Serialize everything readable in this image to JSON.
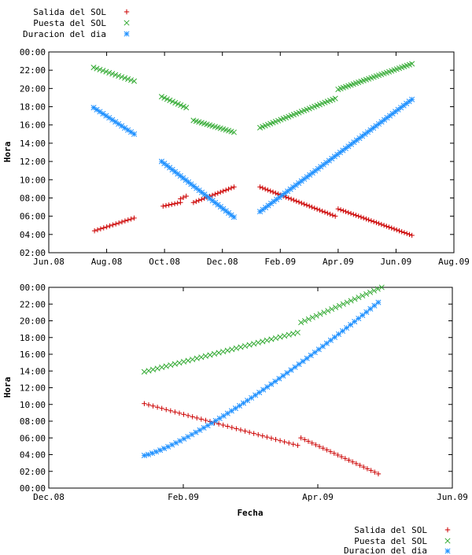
{
  "colors": {
    "sunrise": "#cc0000",
    "sunset": "#33aa33",
    "daylight": "#1e90ff"
  },
  "legend_top": {
    "items": [
      {
        "label": "Salida del SOL",
        "marker": "plus"
      },
      {
        "label": "Puesta del SOL",
        "marker": "cross"
      },
      {
        "label": "Duracion del dia",
        "marker": "star"
      }
    ]
  },
  "legend_bottom": {
    "items": [
      {
        "label": "Salida del SOL",
        "marker": "plus"
      },
      {
        "label": "Puesta del SOL",
        "marker": "cross"
      },
      {
        "label": "Duracion del dia",
        "marker": "star"
      }
    ]
  },
  "chart_data": [
    {
      "type": "scatter",
      "title": "",
      "xlabel": "",
      "ylabel": "Hora",
      "x_unit": "months since Jun 2008",
      "xlim": [
        0,
        14
      ],
      "ylim": [
        2,
        24
      ],
      "xticks": [
        {
          "x": 0,
          "label": "Jun.08"
        },
        {
          "x": 2,
          "label": "Aug.08"
        },
        {
          "x": 4,
          "label": "Oct.08"
        },
        {
          "x": 6,
          "label": "Dec.08"
        },
        {
          "x": 8,
          "label": "Feb.09"
        },
        {
          "x": 10,
          "label": "Apr.09"
        },
        {
          "x": 12,
          "label": "Jun.09"
        },
        {
          "x": 14,
          "label": "Aug.09"
        }
      ],
      "yticks": [
        {
          "y": 2,
          "label": "02:00"
        },
        {
          "y": 4,
          "label": "04:00"
        },
        {
          "y": 6,
          "label": "06:00"
        },
        {
          "y": 8,
          "label": "08:00"
        },
        {
          "y": 10,
          "label": "10:00"
        },
        {
          "y": 12,
          "label": "12:00"
        },
        {
          "y": 14,
          "label": "14:00"
        },
        {
          "y": 16,
          "label": "16:00"
        },
        {
          "y": 18,
          "label": "18:00"
        },
        {
          "y": 20,
          "label": "20:00"
        },
        {
          "y": 22,
          "label": "22:00"
        },
        {
          "y": 24,
          "label": "00:00"
        }
      ],
      "series": [
        {
          "name": "Salida del SOL",
          "marker": "plus",
          "segments": [
            {
              "x0": 1.58,
              "x1": 2.95,
              "y0": 4.4,
              "y1": 5.8,
              "n": 14
            },
            {
              "x0": 3.95,
              "x1": 4.55,
              "y0": 7.1,
              "y1": 7.5,
              "n": 7
            },
            {
              "x0": 4.55,
              "x1": 4.75,
              "y0": 7.9,
              "y1": 8.2,
              "n": 3
            },
            {
              "x0": 5.0,
              "x1": 6.4,
              "y0": 7.5,
              "y1": 9.2,
              "n": 16
            },
            {
              "x0": 7.3,
              "x1": 9.9,
              "y0": 9.2,
              "y1": 6.0,
              "n": 30
            },
            {
              "x0": 10.0,
              "x1": 12.55,
              "y0": 6.8,
              "y1": 3.9,
              "n": 30
            }
          ]
        },
        {
          "name": "Puesta del SOL",
          "marker": "cross",
          "segments": [
            {
              "x0": 1.55,
              "x1": 2.95,
              "y0": 22.3,
              "y1": 20.8,
              "n": 14
            },
            {
              "x0": 3.9,
              "x1": 4.75,
              "y0": 19.1,
              "y1": 17.9,
              "n": 10
            },
            {
              "x0": 5.0,
              "x1": 6.4,
              "y0": 16.5,
              "y1": 15.2,
              "n": 16
            },
            {
              "x0": 7.3,
              "x1": 9.9,
              "y0": 15.7,
              "y1": 18.9,
              "n": 30
            },
            {
              "x0": 10.0,
              "x1": 12.55,
              "y0": 19.9,
              "y1": 22.7,
              "n": 30
            }
          ]
        },
        {
          "name": "Duracion del dia",
          "marker": "star",
          "segments": [
            {
              "x0": 1.55,
              "x1": 2.95,
              "y0": 17.9,
              "y1": 15.0,
              "n": 14
            },
            {
              "x0": 3.9,
              "x1": 6.4,
              "y0": 12.0,
              "y1": 5.9,
              "n": 28
            },
            {
              "x0": 7.3,
              "x1": 12.55,
              "y0": 6.5,
              "y1": 18.8,
              "n": 56
            }
          ]
        }
      ]
    },
    {
      "type": "scatter",
      "title": "",
      "xlabel": "Fecha",
      "ylabel": "Hora",
      "x_unit": "months since Dec 2008",
      "xlim": [
        0,
        6
      ],
      "ylim": [
        0,
        24
      ],
      "xticks": [
        {
          "x": 0,
          "label": "Dec.08"
        },
        {
          "x": 2,
          "label": "Feb.09"
        },
        {
          "x": 4,
          "label": "Apr.09"
        },
        {
          "x": 6,
          "label": "Jun.09"
        }
      ],
      "yticks": [
        {
          "y": 0,
          "label": "00:00"
        },
        {
          "y": 2,
          "label": "02:00"
        },
        {
          "y": 4,
          "label": "04:00"
        },
        {
          "y": 6,
          "label": "06:00"
        },
        {
          "y": 8,
          "label": "08:00"
        },
        {
          "y": 10,
          "label": "10:00"
        },
        {
          "y": 12,
          "label": "12:00"
        },
        {
          "y": 14,
          "label": "14:00"
        },
        {
          "y": 16,
          "label": "16:00"
        },
        {
          "y": 18,
          "label": "18:00"
        },
        {
          "y": 20,
          "label": "20:00"
        },
        {
          "y": 22,
          "label": "22:00"
        },
        {
          "y": 24,
          "label": "00:00"
        }
      ],
      "series": [
        {
          "name": "Salida del SOL",
          "marker": "plus",
          "segments": [
            {
              "x0": 1.42,
              "x1": 3.7,
              "y0": 10.1,
              "y1": 5.1,
              "n": 36
            },
            {
              "x0": 3.75,
              "x1": 4.9,
              "y0": 6.0,
              "y1": 1.7,
              "n": 22
            }
          ]
        },
        {
          "name": "Puesta del SOL",
          "marker": "cross",
          "segments": [
            {
              "x0": 1.42,
              "x1": 3.7,
              "y0": 13.9,
              "y1": 18.6,
              "n": 36
            },
            {
              "x0": 3.75,
              "x1": 4.95,
              "y0": 19.8,
              "y1": 24.0,
              "n": 22
            }
          ]
        },
        {
          "name": "Duracion del dia",
          "marker": "star",
          "segments": [
            {
              "x0": 1.42,
              "x1": 4.9,
              "y0": 3.9,
              "y1": 22.2,
              "n": 60,
              "curve": 1.25
            }
          ]
        }
      ]
    }
  ]
}
